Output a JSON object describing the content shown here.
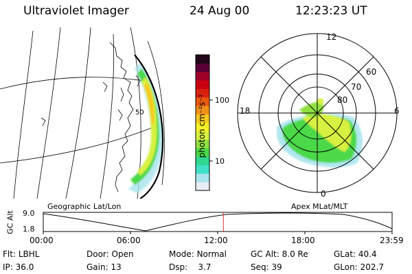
{
  "header": {
    "instrument": "Ultraviolet Imager",
    "date": "24 Aug 00",
    "time": "12:23:23 UT"
  },
  "colorbar": {
    "label": "photon cm⁻²s⁻¹",
    "ticks": [
      {
        "label": "100",
        "value": 100
      },
      {
        "label": "10",
        "value": 10
      }
    ],
    "colors": [
      "#e8eef4",
      "#a8e4ec",
      "#40e0c8",
      "#30d890",
      "#4cd848",
      "#90e040",
      "#d8f040",
      "#f8f028",
      "#f8c820",
      "#f09018",
      "#e85810",
      "#d82010",
      "#c80010",
      "#a00028",
      "#580038",
      "#200818"
    ]
  },
  "geo_panel": {
    "label": "Geographic Lat/Lon",
    "grid_label": "50"
  },
  "polar_panel": {
    "label": "Apex MLat/MLT",
    "mlt_labels": {
      "top": "12",
      "left": "18",
      "right": "6",
      "bottom": "0"
    },
    "lat_labels": [
      "80",
      "70",
      "60"
    ]
  },
  "altitude_strip": {
    "ylabel": "GC Alt",
    "y_ticks": [
      "9.0",
      "1.8"
    ],
    "x_ticks": [
      "00:00",
      "06:00",
      "12:00",
      "18:00",
      "23:59"
    ],
    "marker_time": "12:23",
    "marker_color": "#e03030"
  },
  "footer": {
    "rows": [
      [
        {
          "key": "Flt:",
          "value": "LBHL"
        },
        {
          "key": "Door:",
          "value": "Open"
        },
        {
          "key": "Mode:",
          "value": "Normal"
        },
        {
          "key": "GC Alt:",
          "value": "8.0 Re"
        },
        {
          "key": "GLat:",
          "value": "40.4"
        }
      ],
      [
        {
          "key": "IP:",
          "value": "36.0"
        },
        {
          "key": "Gain:",
          "value": "13"
        },
        {
          "key": "Dsp:",
          "value": "3.7"
        },
        {
          "key": "Seq:",
          "value": "39"
        },
        {
          "key": "GLon:",
          "value": "202.7"
        }
      ]
    ]
  }
}
